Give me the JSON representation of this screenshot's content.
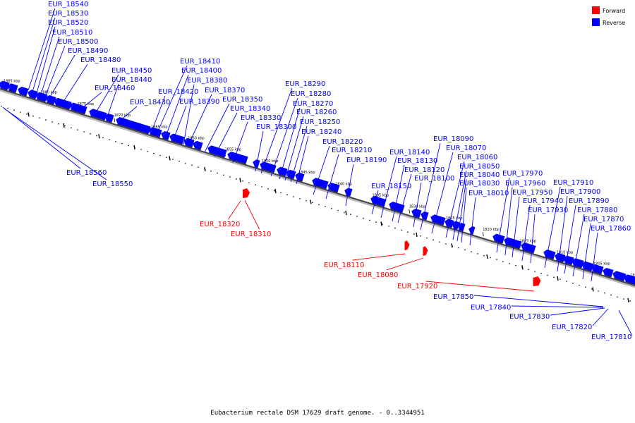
{
  "caption": "Eubacterium rectale DSM 17629 draft genome. - 0..3344951",
  "legend": [
    {
      "label": "Forward",
      "color": "#ff0000"
    },
    {
      "label": "Reverse",
      "color": "#0000ff"
    }
  ],
  "colors": {
    "forward": "#ff0000",
    "reverse": "#0000ff",
    "axis": "#555555"
  },
  "ticks": [
    {
      "label": "1885 kbp",
      "kbp": 1885
    },
    {
      "label": "1880 kbp",
      "kbp": 1880
    },
    {
      "label": "1875 kbp",
      "kbp": 1875
    },
    {
      "label": "1870 kbp",
      "kbp": 1870
    },
    {
      "label": "1865 kbp",
      "kbp": 1865
    },
    {
      "label": "1860 kbp",
      "kbp": 1860
    },
    {
      "label": "1855 kbp",
      "kbp": 1855
    },
    {
      "label": "1850 kbp",
      "kbp": 1850
    },
    {
      "label": "1845 kbp",
      "kbp": 1845
    },
    {
      "label": "1840 kbp",
      "kbp": 1840
    },
    {
      "label": "1835 kbp",
      "kbp": 1835
    },
    {
      "label": "1830 kbp",
      "kbp": 1830
    },
    {
      "label": "1825 kbp",
      "kbp": 1825
    },
    {
      "label": "1820 kbp",
      "kbp": 1820
    },
    {
      "label": "1815 kbp",
      "kbp": 1815
    },
    {
      "label": "1810 kbp",
      "kbp": 1810
    },
    {
      "label": "1805 kbp",
      "kbp": 1805
    },
    {
      "label": "1800 kbp",
      "kbp": 1800
    }
  ],
  "genes": [
    {
      "name": "EUR_18540",
      "strand": "reverse",
      "track": "upper"
    },
    {
      "name": "EUR_18530",
      "strand": "reverse",
      "track": "upper"
    },
    {
      "name": "EUR_18520",
      "strand": "reverse",
      "track": "upper"
    },
    {
      "name": "EUR_18510",
      "strand": "reverse",
      "track": "upper"
    },
    {
      "name": "EUR_18500",
      "strand": "reverse",
      "track": "upper"
    },
    {
      "name": "EUR_18490",
      "strand": "reverse",
      "track": "upper"
    },
    {
      "name": "EUR_18480",
      "strand": "reverse",
      "track": "upper"
    },
    {
      "name": "EUR_18460",
      "strand": "reverse",
      "track": "upper"
    },
    {
      "name": "EUR_18450",
      "strand": "reverse",
      "track": "upper"
    },
    {
      "name": "EUR_18440",
      "strand": "reverse",
      "track": "upper"
    },
    {
      "name": "EUR_18430",
      "strand": "reverse",
      "track": "upper"
    },
    {
      "name": "EUR_18420",
      "strand": "reverse",
      "track": "upper"
    },
    {
      "name": "EUR_18410",
      "strand": "reverse",
      "track": "upper"
    },
    {
      "name": "EUR_18400",
      "strand": "reverse",
      "track": "upper"
    },
    {
      "name": "EUR_18390",
      "strand": "reverse",
      "track": "upper"
    },
    {
      "name": "EUR_18380",
      "strand": "reverse",
      "track": "upper"
    },
    {
      "name": "EUR_18370",
      "strand": "reverse",
      "track": "upper"
    },
    {
      "name": "EUR_18350",
      "strand": "reverse",
      "track": "upper"
    },
    {
      "name": "EUR_18340",
      "strand": "reverse",
      "track": "upper"
    },
    {
      "name": "EUR_18330",
      "strand": "reverse",
      "track": "upper"
    },
    {
      "name": "EUR_18300",
      "strand": "reverse",
      "track": "upper"
    },
    {
      "name": "EUR_18290",
      "strand": "reverse",
      "track": "upper"
    },
    {
      "name": "EUR_18280",
      "strand": "reverse",
      "track": "upper"
    },
    {
      "name": "EUR_18270",
      "strand": "reverse",
      "track": "upper"
    },
    {
      "name": "EUR_18260",
      "strand": "reverse",
      "track": "upper"
    },
    {
      "name": "EUR_18250",
      "strand": "reverse",
      "track": "upper"
    },
    {
      "name": "EUR_18240",
      "strand": "reverse",
      "track": "upper"
    },
    {
      "name": "EUR_18220",
      "strand": "reverse",
      "track": "upper"
    },
    {
      "name": "EUR_18210",
      "strand": "reverse",
      "track": "upper"
    },
    {
      "name": "EUR_18190",
      "strand": "reverse",
      "track": "upper"
    },
    {
      "name": "EUR_18150",
      "strand": "reverse",
      "track": "upper"
    },
    {
      "name": "EUR_18140",
      "strand": "reverse",
      "track": "upper"
    },
    {
      "name": "EUR_18130",
      "strand": "reverse",
      "track": "upper"
    },
    {
      "name": "EUR_18120",
      "strand": "reverse",
      "track": "upper"
    },
    {
      "name": "EUR_18100",
      "strand": "reverse",
      "track": "upper"
    },
    {
      "name": "EUR_18090",
      "strand": "reverse",
      "track": "upper"
    },
    {
      "name": "EUR_18070",
      "strand": "reverse",
      "track": "upper"
    },
    {
      "name": "EUR_18060",
      "strand": "reverse",
      "track": "upper"
    },
    {
      "name": "EUR_18050",
      "strand": "reverse",
      "track": "upper"
    },
    {
      "name": "EUR_18040",
      "strand": "reverse",
      "track": "upper"
    },
    {
      "name": "EUR_18030",
      "strand": "reverse",
      "track": "upper"
    },
    {
      "name": "EUR_18010",
      "strand": "reverse",
      "track": "upper"
    },
    {
      "name": "EUR_17970",
      "strand": "reverse",
      "track": "upper"
    },
    {
      "name": "EUR_17960",
      "strand": "reverse",
      "track": "upper"
    },
    {
      "name": "EUR_17950",
      "strand": "reverse",
      "track": "upper"
    },
    {
      "name": "EUR_17940",
      "strand": "reverse",
      "track": "upper"
    },
    {
      "name": "EUR_17930",
      "strand": "reverse",
      "track": "upper"
    },
    {
      "name": "EUR_17910",
      "strand": "reverse",
      "track": "upper"
    },
    {
      "name": "EUR_17900",
      "strand": "reverse",
      "track": "upper"
    },
    {
      "name": "EUR_17890",
      "strand": "reverse",
      "track": "upper"
    },
    {
      "name": "EUR_17880",
      "strand": "reverse",
      "track": "upper"
    },
    {
      "name": "EUR_17870",
      "strand": "reverse",
      "track": "upper"
    },
    {
      "name": "EUR_17860",
      "strand": "reverse",
      "track": "upper"
    },
    {
      "name": "EUR_18560",
      "strand": "reverse",
      "track": "lower"
    },
    {
      "name": "EUR_18550",
      "strand": "reverse",
      "track": "lower"
    },
    {
      "name": "EUR_18320",
      "strand": "forward",
      "track": "lower"
    },
    {
      "name": "EUR_18310",
      "strand": "forward",
      "track": "lower"
    },
    {
      "name": "EUR_18110",
      "strand": "forward",
      "track": "lower"
    },
    {
      "name": "EUR_18080",
      "strand": "forward",
      "track": "lower"
    },
    {
      "name": "EUR_17920",
      "strand": "forward",
      "track": "lower"
    },
    {
      "name": "EUR_17850",
      "strand": "reverse",
      "track": "lower"
    },
    {
      "name": "EUR_17840",
      "strand": "reverse",
      "track": "lower"
    },
    {
      "name": "EUR_17830",
      "strand": "reverse",
      "track": "lower"
    },
    {
      "name": "EUR_17820",
      "strand": "reverse",
      "track": "lower"
    },
    {
      "name": "EUR_17810",
      "strand": "reverse",
      "track": "lower"
    }
  ]
}
